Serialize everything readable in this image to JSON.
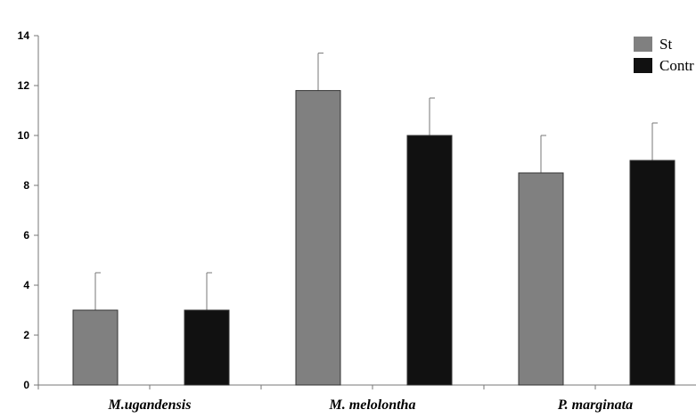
{
  "chart_data": {
    "type": "bar",
    "title": "",
    "xlabel": "",
    "ylabel": "",
    "ylim": [
      0,
      14
    ],
    "yticks": [
      0,
      2,
      4,
      6,
      8,
      10,
      12,
      14
    ],
    "grid": false,
    "legend_position": "top-right",
    "categories": [
      "M.ugandensis",
      "M. melolontha",
      "P. marginata"
    ],
    "series": [
      {
        "name": "St",
        "color": "#808080",
        "values": [
          3,
          11.8,
          8.5
        ],
        "errors": [
          1.5,
          1.5,
          1.5
        ]
      },
      {
        "name": "Contr",
        "color": "#111111",
        "values": [
          3,
          10,
          9
        ],
        "errors": [
          1.5,
          1.5,
          1.5
        ]
      }
    ]
  }
}
